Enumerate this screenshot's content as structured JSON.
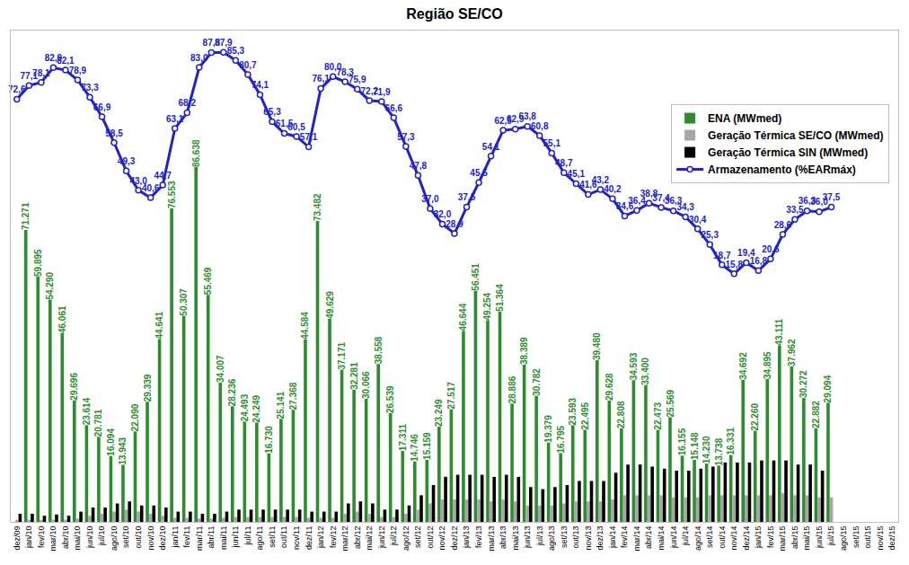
{
  "chart_data": {
    "type": "bar",
    "title": "Região SE/CO",
    "categories": [
      "dez/09",
      "jan/10",
      "fev/10",
      "mar/10",
      "abr/10",
      "mai/10",
      "jun/10",
      "jul/10",
      "ago/10",
      "set/10",
      "out/10",
      "nov/10",
      "dez/10",
      "jan/11",
      "fev/11",
      "mar/11",
      "abr/11",
      "mai/11",
      "jun/11",
      "jul/11",
      "ago/11",
      "set/11",
      "out/11",
      "nov/11",
      "dez/11",
      "jan/12",
      "fev/12",
      "mar/12",
      "abr/12",
      "mai/12",
      "jun/12",
      "jul/12",
      "ago/12",
      "set/12",
      "out/12",
      "nov/12",
      "dez/12",
      "jan/13",
      "fev/13",
      "mar/13",
      "abr/13",
      "mai/13",
      "jun/13",
      "jul/13",
      "ago/13",
      "set/13",
      "out/13",
      "nov/13",
      "dez/13",
      "jan/14",
      "fev/14",
      "mar/14",
      "abr/14",
      "mai/14",
      "jun/14",
      "jul/14",
      "ago/14",
      "set/14",
      "out/14",
      "nov/14",
      "dez/14",
      "jan/15",
      "fev/15",
      "mar/15",
      "abr/15",
      "mai/15",
      "jun/15",
      "jul/15",
      "ago/15",
      "set/15",
      "out/15",
      "nov/15",
      "dez/15"
    ],
    "series": [
      {
        "name": "ENA (MWmed)",
        "type": "bar",
        "color": "#2e8b2e",
        "data_labels": true,
        "values": [
          null,
          71271,
          59895,
          54290,
          46061,
          29696,
          23614,
          20781,
          16094,
          13943,
          22090,
          29339,
          44641,
          76553,
          50307,
          86638,
          55469,
          34007,
          28236,
          24493,
          24249,
          16730,
          25141,
          27368,
          44584,
          73482,
          49629,
          37171,
          32281,
          30066,
          38558,
          26539,
          17311,
          14746,
          15159,
          23249,
          27517,
          46644,
          56451,
          49254,
          51364,
          28886,
          38389,
          30782,
          19379,
          16795,
          23593,
          22495,
          39480,
          29628,
          22808,
          34593,
          33400,
          22473,
          25569,
          16155,
          15148,
          14230,
          13738,
          16331,
          34692,
          22260,
          34895,
          43111,
          37962,
          30272,
          22882,
          29094,
          null,
          null,
          null,
          null,
          null
        ],
        "value_labels": [
          null,
          "71.271",
          "59.895",
          "54.290",
          "46.061",
          "29.696",
          "23.614",
          "20.781",
          "16.094",
          "13.943",
          "22.090",
          "29.339",
          "44.641",
          "76.553",
          "50.307",
          "86.638",
          "55.469",
          "34.007",
          "28.236",
          "24.493",
          "24.249",
          "16.730",
          "25.141",
          "27.368",
          "44.584",
          "73.482",
          "49.629",
          "37.171",
          "32.281",
          "30.066",
          "38.558",
          "26.539",
          "17.311",
          "14.746",
          "15.159",
          "23.249",
          "27.517",
          "46.644",
          "56.451",
          "49.254",
          "51.364",
          "28.886",
          "38.389",
          "30.782",
          "19.379",
          "16.795",
          "23.593",
          "22.495",
          "39.480",
          "29.628",
          "22.808",
          "34.593",
          "33.400",
          "22.473",
          "25.569",
          "16.155",
          "15.148",
          "14.230",
          "13.738",
          "16.331",
          "34.692",
          "22.260",
          "34.895",
          "43.111",
          "37.962",
          "30.272",
          "22.882",
          "29.094",
          null,
          null,
          null,
          null,
          null
        ]
      },
      {
        "name": "Geração Térmica SE/CO (MWmed)",
        "type": "bar",
        "color": "#a6a6a6",
        "values": [
          500,
          500,
          500,
          500,
          500,
          800,
          1500,
          2000,
          2500,
          3000,
          2500,
          2000,
          1500,
          1000,
          1000,
          800,
          800,
          1000,
          1200,
          1200,
          1200,
          1200,
          1200,
          1200,
          1000,
          1000,
          1000,
          2000,
          2500,
          2000,
          1200,
          1200,
          2000,
          3000,
          4500,
          5500,
          5500,
          5500,
          5500,
          5000,
          5500,
          5000,
          4000,
          4000,
          4000,
          4500,
          5000,
          5000,
          5000,
          5500,
          6500,
          6500,
          6500,
          6500,
          6000,
          6000,
          6000,
          6500,
          6500,
          6500,
          6500,
          6500,
          6500,
          7000,
          6500,
          6500,
          6000,
          6000,
          null,
          null,
          null,
          null,
          null
        ]
      },
      {
        "name": "Geração Térmica SIN (MWmed)",
        "type": "bar",
        "color": "#000000",
        "values": [
          2000,
          2000,
          1500,
          1800,
          1500,
          2500,
          3500,
          3500,
          4500,
          5000,
          4000,
          4000,
          3500,
          2500,
          2500,
          2000,
          2000,
          2500,
          3000,
          3000,
          3000,
          3000,
          3000,
          3000,
          2500,
          2500,
          2500,
          4500,
          5000,
          4500,
          3000,
          3000,
          4000,
          6500,
          9000,
          11000,
          11500,
          11500,
          11500,
          11000,
          11500,
          11000,
          8500,
          8000,
          8500,
          9000,
          10000,
          10000,
          10000,
          12000,
          14000,
          14000,
          13500,
          13000,
          12500,
          12500,
          13000,
          13500,
          14500,
          14500,
          14500,
          15000,
          15000,
          15000,
          14000,
          14000,
          12500,
          null,
          null,
          null,
          null,
          null,
          null
        ]
      },
      {
        "name": "Armazenamento (%EARmáx)",
        "type": "line",
        "axis": "y2",
        "color": "#2222cc",
        "marker": "circle",
        "data_labels": true,
        "values": [
          72.6,
          77.1,
          78.1,
          82.9,
          82.1,
          78.9,
          73.3,
          66.9,
          58.5,
          49.3,
          43.0,
          40.6,
          44.7,
          63.1,
          68.2,
          83.0,
          87.8,
          87.9,
          85.3,
          80.7,
          74.1,
          65.3,
          61.5,
          60.5,
          57.1,
          76.1,
          80.0,
          78.3,
          75.9,
          72.2,
          71.9,
          66.6,
          57.3,
          47.8,
          37.0,
          32.0,
          28.9,
          37.5,
          45.5,
          54.1,
          62.5,
          62.9,
          63.8,
          60.8,
          55.1,
          48.7,
          45.1,
          41.6,
          43.2,
          40.2,
          34.6,
          36.4,
          38.8,
          37.4,
          36.3,
          34.3,
          30.4,
          25.3,
          18.7,
          15.8,
          19.4,
          16.8,
          20.6,
          28.6,
          33.5,
          36.3,
          36.0,
          37.5,
          null,
          null,
          null,
          null,
          null
        ],
        "value_labels": [
          "72,6",
          "77,1",
          "78,1",
          "82,9",
          "82,1",
          "78,9",
          "73,3",
          "66,9",
          "58,5",
          "49,3",
          "43,0",
          "40,6",
          "44,7",
          "63,1",
          "68,2",
          "83,0",
          "87,8",
          "87,9",
          "85,3",
          "80,7",
          "74,1",
          "65,3",
          "61,5",
          "60,5",
          "57,1",
          "76,1",
          "80,0",
          "78,3",
          "75,9",
          "72,2",
          "71,9",
          "66,6",
          "57,3",
          "47,8",
          "37,0",
          "32,0",
          "28,9",
          "37,5",
          "45,5",
          "54,1",
          "62,5",
          "62,9",
          "63,8",
          "60,8",
          "55,1",
          "48,7",
          "45,1",
          "41,6",
          "43,2",
          "40,2",
          "34,6",
          "36,4",
          "38,8",
          "37,4",
          "36,3",
          "34,3",
          "30,4",
          "25,3",
          "18,7",
          "15,8",
          "19,4",
          "16,8",
          "20,6",
          "28,6",
          "33,5",
          "36,3",
          "36,0",
          "37,5",
          null,
          null,
          null,
          null,
          null
        ]
      }
    ],
    "ylim": [
      0,
      120000
    ],
    "yticks": [],
    "y2lim": [
      -65,
      95
    ],
    "y2ticks": [],
    "grid": false,
    "legend": "top right",
    "tick_labels": "x"
  }
}
